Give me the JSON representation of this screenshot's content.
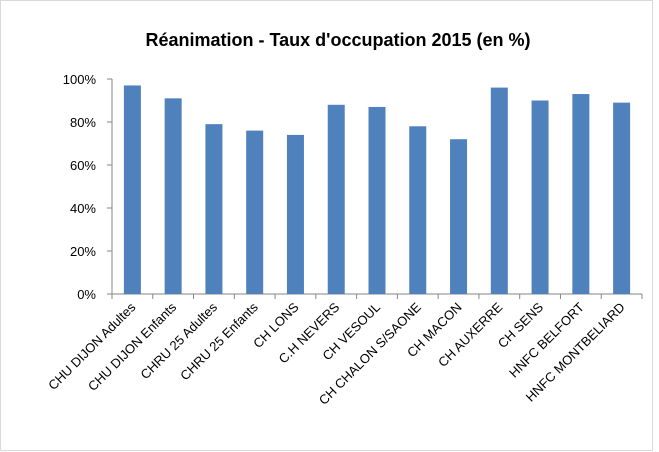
{
  "chart_data": {
    "type": "bar",
    "title": "Réanimation - Taux d'occupation 2015 (en %)",
    "categories": [
      "CHU DIJON Adultes",
      "CHU DIJON Enfants",
      "CHRU 25 Adultes",
      "CHRU 25 Enfants",
      "CH LONS",
      "C.H NEVERS",
      "CH VESOUL",
      "CH CHALON S/SAONE",
      "CH MACON",
      "CH AUXERRE",
      "CH SENS",
      "HNFC BELFORT",
      "HNFC MONTBELIARD"
    ],
    "values": [
      97,
      91,
      79,
      76,
      74,
      88,
      87,
      78,
      72,
      96,
      90,
      93,
      89
    ],
    "color": "#4f81bd",
    "ylim": [
      0,
      100
    ],
    "yticks": [
      {
        "value": 0,
        "label": "0%"
      },
      {
        "value": 20,
        "label": "20%"
      },
      {
        "value": 40,
        "label": "40%"
      },
      {
        "value": 60,
        "label": "60%"
      },
      {
        "value": 80,
        "label": "80%"
      },
      {
        "value": 100,
        "label": "100%"
      }
    ],
    "grid": false
  }
}
